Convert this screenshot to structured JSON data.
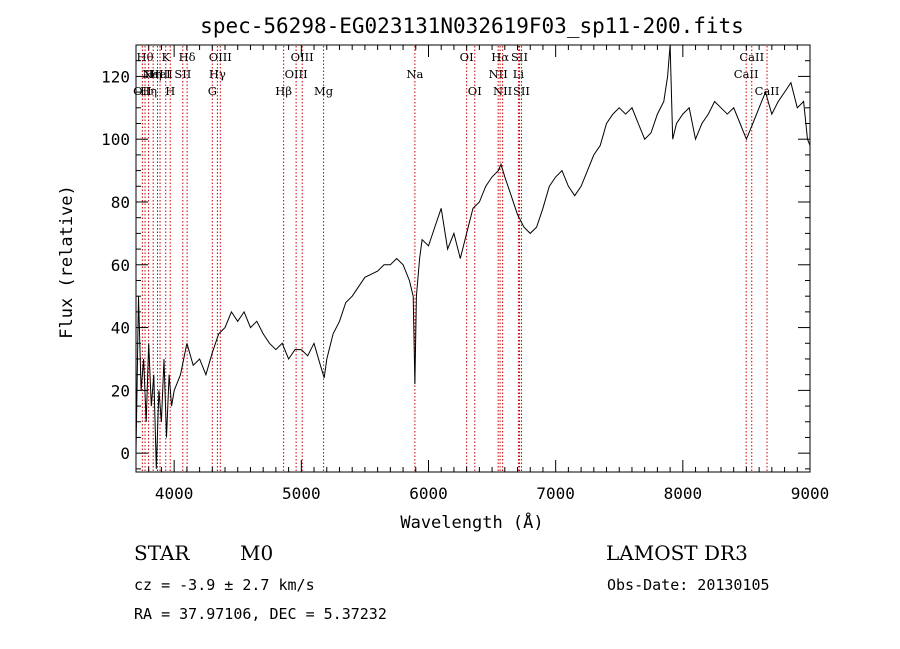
{
  "chart_data": {
    "type": "line",
    "title": "spec-56298-EG023131N032619F03_sp11-200.fits",
    "xlabel": "Wavelength (Å)",
    "ylabel": "Flux (relative)",
    "xlim": [
      3700,
      9000
    ],
    "ylim": [
      -6,
      130
    ],
    "x_ticks": [
      4000,
      5000,
      6000,
      7000,
      8000,
      9000
    ],
    "y_ticks": [
      0,
      20,
      40,
      60,
      80,
      100,
      120
    ],
    "grid": false,
    "legend": "none",
    "line_color": "#000000",
    "marker_color": "#cc0000",
    "series": [
      {
        "x": [
          3700,
          3720,
          3740,
          3760,
          3780,
          3800,
          3820,
          3840,
          3860,
          3880,
          3900,
          3920,
          3940,
          3960,
          3980,
          4000,
          4050,
          4100,
          4150,
          4200,
          4250,
          4300,
          4350,
          4400,
          4450,
          4500,
          4550,
          4600,
          4650,
          4700,
          4750,
          4800,
          4850,
          4900,
          4950,
          5000,
          5050,
          5100,
          5150,
          5180,
          5200,
          5250,
          5300,
          5350,
          5400,
          5450,
          5500,
          5550,
          5600,
          5650,
          5700,
          5750,
          5800,
          5850,
          5880,
          5893,
          5905,
          5930,
          5950,
          6000,
          6050,
          6100,
          6150,
          6200,
          6250,
          6300,
          6350,
          6400,
          6450,
          6500,
          6550,
          6570,
          6600,
          6650,
          6700,
          6750,
          6800,
          6850,
          6900,
          6950,
          7000,
          7050,
          7100,
          7150,
          7200,
          7250,
          7300,
          7350,
          7400,
          7450,
          7500,
          7550,
          7600,
          7650,
          7700,
          7750,
          7800,
          7850,
          7880,
          7900,
          7920,
          7950,
          8000,
          8050,
          8100,
          8150,
          8200,
          8250,
          8300,
          8350,
          8400,
          8450,
          8500,
          8550,
          8600,
          8650,
          8700,
          8750,
          8800,
          8850,
          8900,
          8950,
          8980,
          9000
        ],
        "values": [
          0,
          50,
          20,
          30,
          10,
          35,
          15,
          25,
          -5,
          20,
          10,
          30,
          5,
          25,
          15,
          20,
          25,
          35,
          28,
          30,
          25,
          32,
          38,
          40,
          45,
          42,
          45,
          40,
          42,
          38,
          35,
          33,
          35,
          30,
          33,
          33,
          31,
          35,
          28,
          24,
          30,
          38,
          42,
          48,
          50,
          53,
          56,
          57,
          58,
          60,
          60,
          62,
          60,
          55,
          50,
          22,
          50,
          62,
          68,
          66,
          72,
          78,
          65,
          70,
          62,
          70,
          78,
          80,
          85,
          88,
          90,
          92,
          88,
          82,
          76,
          72,
          70,
          72,
          78,
          85,
          88,
          90,
          85,
          82,
          85,
          90,
          95,
          98,
          105,
          108,
          110,
          108,
          110,
          105,
          100,
          102,
          108,
          112,
          120,
          130,
          100,
          105,
          108,
          110,
          100,
          105,
          108,
          112,
          110,
          108,
          110,
          105,
          100,
          105,
          110,
          115,
          108,
          112,
          115,
          118,
          110,
          112,
          100,
          98
        ]
      }
    ],
    "line_markers": [
      {
        "wavelength": 3750,
        "label": "OII",
        "row": 3
      },
      {
        "wavelength": 3771,
        "label": "Hθ",
        "row": 1
      },
      {
        "wavelength": 3799,
        "label": "Hη",
        "row": 3
      },
      {
        "wavelength": 3835,
        "label": "Hη",
        "row": 2
      },
      {
        "wavelength": 3869,
        "label": "NeIII",
        "row": 2
      },
      {
        "wavelength": 3889,
        "label": "HeI",
        "row": 2
      },
      {
        "wavelength": 3934,
        "label": "K",
        "row": 1
      },
      {
        "wavelength": 3969,
        "label": "H",
        "row": 3
      },
      {
        "wavelength": 4068,
        "label": "SII",
        "row": 2
      },
      {
        "wavelength": 4102,
        "label": "Hδ",
        "row": 1
      },
      {
        "wavelength": 4300,
        "label": "G",
        "row": 3
      },
      {
        "wavelength": 4340,
        "label": "Hγ",
        "row": 2
      },
      {
        "wavelength": 4363,
        "label": "OIII",
        "row": 1
      },
      {
        "wavelength": 4861,
        "label": "Hβ",
        "row": 3
      },
      {
        "wavelength": 4959,
        "label": "OIII",
        "row": 2
      },
      {
        "wavelength": 5007,
        "label": "OIII",
        "row": 1
      },
      {
        "wavelength": 5175,
        "label": "Mg",
        "row": 3
      },
      {
        "wavelength": 5893,
        "label": "Na",
        "row": 2
      },
      {
        "wavelength": 6300,
        "label": "OI",
        "row": 1
      },
      {
        "wavelength": 6364,
        "label": "OI",
        "row": 3
      },
      {
        "wavelength": 6548,
        "label": "NII",
        "row": 2
      },
      {
        "wavelength": 6563,
        "label": "Hα",
        "row": 1
      },
      {
        "wavelength": 6583,
        "label": "NII",
        "row": 3
      },
      {
        "wavelength": 6707,
        "label": "Li",
        "row": 2
      },
      {
        "wavelength": 6716,
        "label": "SII",
        "row": 1
      },
      {
        "wavelength": 6731,
        "label": "SII",
        "row": 3
      },
      {
        "wavelength": 8498,
        "label": "CaII",
        "row": 2
      },
      {
        "wavelength": 8542,
        "label": "CaII",
        "row": 1
      },
      {
        "wavelength": 8662,
        "label": "CaII",
        "row": 3
      }
    ]
  },
  "info": {
    "class_label": "STAR",
    "subclass": "M0",
    "cz": "cz = -3.9 ± 2.7 km/s",
    "coords": "RA =  37.97106, DEC =   5.37232",
    "survey": "LAMOST DR3",
    "obs_date": "Obs-Date: 20130105"
  }
}
